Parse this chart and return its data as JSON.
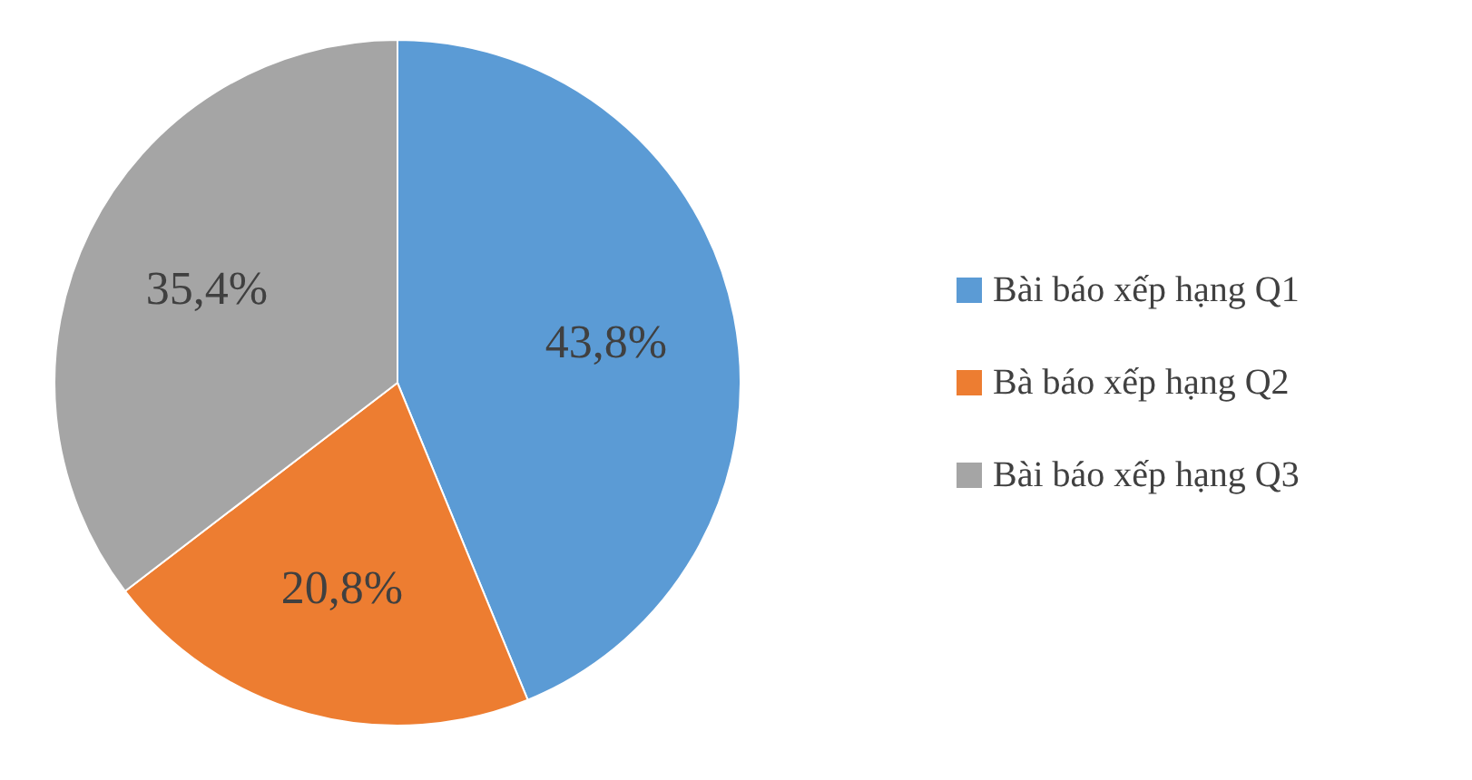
{
  "chart_data": {
    "type": "pie",
    "categories": [
      "Bài báo xếp hạng Q1",
      "Bà báo xếp hạng Q2",
      "Bài báo xếp hạng Q3"
    ],
    "values": [
      43.8,
      20.8,
      35.4
    ],
    "colors": [
      "#5b9bd5",
      "#ed7d31",
      "#a5a5a5"
    ],
    "value_labels": [
      "43,8%",
      "20,8%",
      "35,4%"
    ],
    "legend": "right"
  }
}
